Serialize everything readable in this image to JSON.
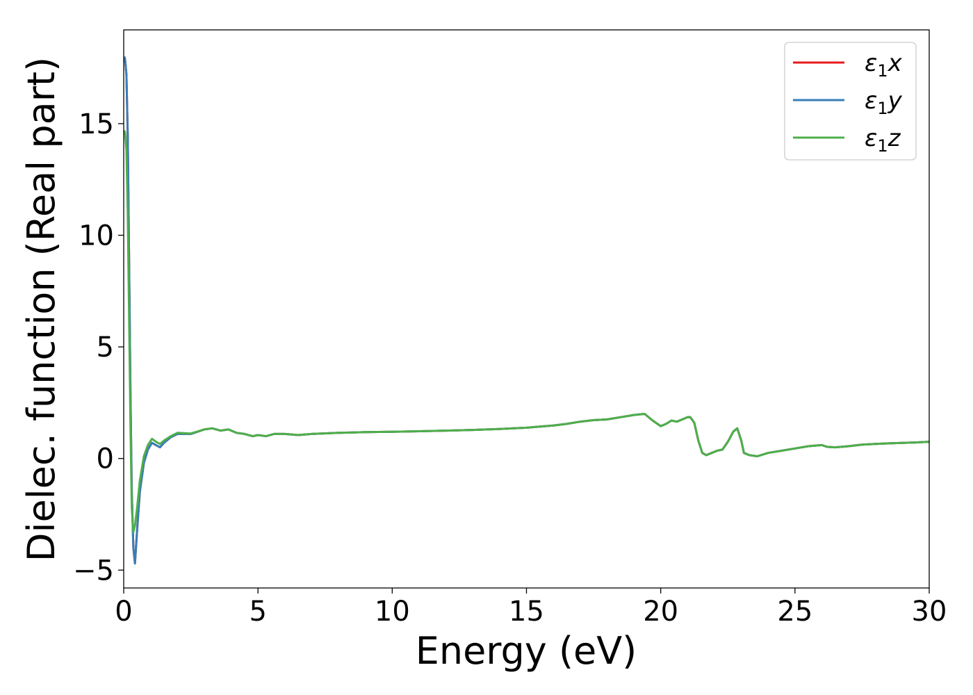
{
  "chart_data": {
    "type": "line",
    "title": "",
    "xlabel": "Energy (eV)",
    "ylabel": "Dielec. function (Real part)",
    "xlim": [
      0,
      30
    ],
    "ylim": [
      -5.8,
      19.2
    ],
    "xticks": [
      0,
      5,
      10,
      15,
      20,
      25,
      30
    ],
    "xtick_labels": [
      "0",
      "5",
      "10",
      "15",
      "20",
      "25",
      "30"
    ],
    "yticks": [
      -5,
      0,
      5,
      10,
      15
    ],
    "ytick_labels": [
      "−5",
      "0",
      "5",
      "10",
      "15"
    ],
    "grid": false,
    "legend_position": "top-right",
    "series": [
      {
        "name": "ε₁x",
        "legend_base": "ε",
        "legend_sub": "1",
        "legend_var": "x",
        "color": "#e41a1c",
        "points": [
          [
            0.02,
            18.0
          ],
          [
            0.05,
            17.9
          ],
          [
            0.1,
            17.2
          ],
          [
            0.15,
            14.5
          ],
          [
            0.2,
            9.0
          ],
          [
            0.25,
            3.0
          ],
          [
            0.3,
            -1.5
          ],
          [
            0.36,
            -4.0
          ],
          [
            0.42,
            -4.7
          ],
          [
            0.5,
            -3.2
          ],
          [
            0.6,
            -1.5
          ],
          [
            0.75,
            -0.2
          ],
          [
            0.9,
            0.4
          ],
          [
            1.05,
            0.7
          ],
          [
            1.2,
            0.6
          ],
          [
            1.35,
            0.5
          ],
          [
            1.5,
            0.7
          ],
          [
            1.75,
            0.95
          ],
          [
            2.0,
            1.1
          ],
          [
            2.5,
            1.1
          ],
          [
            3.0,
            1.3
          ],
          [
            3.3,
            1.35
          ],
          [
            3.6,
            1.25
          ],
          [
            3.9,
            1.3
          ],
          [
            4.2,
            1.15
          ],
          [
            4.5,
            1.1
          ],
          [
            4.8,
            1.0
          ],
          [
            5.0,
            1.05
          ],
          [
            5.3,
            1.0
          ],
          [
            5.6,
            1.1
          ],
          [
            6.0,
            1.1
          ],
          [
            6.5,
            1.05
          ],
          [
            7.0,
            1.1
          ],
          [
            8.0,
            1.15
          ],
          [
            9.0,
            1.18
          ],
          [
            10.0,
            1.2
          ],
          [
            11.0,
            1.22
          ],
          [
            12.0,
            1.25
          ],
          [
            13.0,
            1.28
          ],
          [
            14.0,
            1.32
          ],
          [
            15.0,
            1.38
          ],
          [
            16.0,
            1.48
          ],
          [
            16.5,
            1.55
          ],
          [
            17.0,
            1.65
          ],
          [
            17.5,
            1.72
          ],
          [
            18.0,
            1.75
          ],
          [
            18.5,
            1.85
          ],
          [
            19.0,
            1.95
          ],
          [
            19.4,
            2.0
          ],
          [
            19.7,
            1.7
          ],
          [
            20.0,
            1.45
          ],
          [
            20.2,
            1.55
          ],
          [
            20.4,
            1.7
          ],
          [
            20.6,
            1.65
          ],
          [
            20.8,
            1.75
          ],
          [
            21.0,
            1.85
          ],
          [
            21.1,
            1.85
          ],
          [
            21.25,
            1.6
          ],
          [
            21.4,
            0.8
          ],
          [
            21.55,
            0.25
          ],
          [
            21.7,
            0.15
          ],
          [
            21.9,
            0.25
          ],
          [
            22.1,
            0.35
          ],
          [
            22.3,
            0.4
          ],
          [
            22.5,
            0.75
          ],
          [
            22.7,
            1.2
          ],
          [
            22.85,
            1.35
          ],
          [
            23.0,
            0.8
          ],
          [
            23.1,
            0.25
          ],
          [
            23.3,
            0.15
          ],
          [
            23.6,
            0.1
          ],
          [
            24.0,
            0.25
          ],
          [
            24.5,
            0.35
          ],
          [
            25.0,
            0.45
          ],
          [
            25.5,
            0.55
          ],
          [
            26.0,
            0.6
          ],
          [
            26.2,
            0.52
          ],
          [
            26.5,
            0.5
          ],
          [
            27.0,
            0.55
          ],
          [
            27.5,
            0.62
          ],
          [
            28.0,
            0.65
          ],
          [
            28.5,
            0.68
          ],
          [
            29.0,
            0.7
          ],
          [
            29.5,
            0.72
          ],
          [
            30.0,
            0.75
          ]
        ]
      },
      {
        "name": "ε₁y",
        "legend_base": "ε",
        "legend_sub": "1",
        "legend_var": "y",
        "color": "#377eb8",
        "points": [
          [
            0.02,
            18.0
          ],
          [
            0.05,
            17.9
          ],
          [
            0.1,
            17.2
          ],
          [
            0.15,
            14.5
          ],
          [
            0.2,
            9.0
          ],
          [
            0.25,
            3.0
          ],
          [
            0.3,
            -1.5
          ],
          [
            0.36,
            -4.0
          ],
          [
            0.42,
            -4.7
          ],
          [
            0.5,
            -3.2
          ],
          [
            0.6,
            -1.5
          ],
          [
            0.75,
            -0.2
          ],
          [
            0.9,
            0.4
          ],
          [
            1.05,
            0.7
          ],
          [
            1.2,
            0.6
          ],
          [
            1.35,
            0.5
          ],
          [
            1.5,
            0.7
          ],
          [
            1.75,
            0.95
          ],
          [
            2.0,
            1.1
          ],
          [
            2.5,
            1.1
          ],
          [
            3.0,
            1.3
          ],
          [
            3.3,
            1.35
          ],
          [
            3.6,
            1.25
          ],
          [
            3.9,
            1.3
          ],
          [
            4.2,
            1.15
          ],
          [
            4.5,
            1.1
          ],
          [
            4.8,
            1.0
          ],
          [
            5.0,
            1.05
          ],
          [
            5.3,
            1.0
          ],
          [
            5.6,
            1.1
          ],
          [
            6.0,
            1.1
          ],
          [
            6.5,
            1.05
          ],
          [
            7.0,
            1.1
          ],
          [
            8.0,
            1.15
          ],
          [
            9.0,
            1.18
          ],
          [
            10.0,
            1.2
          ],
          [
            11.0,
            1.22
          ],
          [
            12.0,
            1.25
          ],
          [
            13.0,
            1.28
          ],
          [
            14.0,
            1.32
          ],
          [
            15.0,
            1.38
          ],
          [
            16.0,
            1.48
          ],
          [
            16.5,
            1.55
          ],
          [
            17.0,
            1.65
          ],
          [
            17.5,
            1.72
          ],
          [
            18.0,
            1.75
          ],
          [
            18.5,
            1.85
          ],
          [
            19.0,
            1.95
          ],
          [
            19.4,
            2.0
          ],
          [
            19.7,
            1.7
          ],
          [
            20.0,
            1.45
          ],
          [
            20.2,
            1.55
          ],
          [
            20.4,
            1.7
          ],
          [
            20.6,
            1.65
          ],
          [
            20.8,
            1.75
          ],
          [
            21.0,
            1.85
          ],
          [
            21.1,
            1.85
          ],
          [
            21.25,
            1.6
          ],
          [
            21.4,
            0.8
          ],
          [
            21.55,
            0.25
          ],
          [
            21.7,
            0.15
          ],
          [
            21.9,
            0.25
          ],
          [
            22.1,
            0.35
          ],
          [
            22.3,
            0.4
          ],
          [
            22.5,
            0.75
          ],
          [
            22.7,
            1.2
          ],
          [
            22.85,
            1.35
          ],
          [
            23.0,
            0.8
          ],
          [
            23.1,
            0.25
          ],
          [
            23.3,
            0.15
          ],
          [
            23.6,
            0.1
          ],
          [
            24.0,
            0.25
          ],
          [
            24.5,
            0.35
          ],
          [
            25.0,
            0.45
          ],
          [
            25.5,
            0.55
          ],
          [
            26.0,
            0.6
          ],
          [
            26.2,
            0.52
          ],
          [
            26.5,
            0.5
          ],
          [
            27.0,
            0.55
          ],
          [
            27.5,
            0.62
          ],
          [
            28.0,
            0.65
          ],
          [
            28.5,
            0.68
          ],
          [
            29.0,
            0.7
          ],
          [
            29.5,
            0.72
          ],
          [
            30.0,
            0.75
          ]
        ]
      },
      {
        "name": "ε₁z",
        "legend_base": "ε",
        "legend_sub": "1",
        "legend_var": "z",
        "color": "#4daf4a",
        "points": [
          [
            0.02,
            14.7
          ],
          [
            0.05,
            14.6
          ],
          [
            0.1,
            13.8
          ],
          [
            0.15,
            11.0
          ],
          [
            0.2,
            6.5
          ],
          [
            0.25,
            1.5
          ],
          [
            0.3,
            -2.2
          ],
          [
            0.36,
            -3.3
          ],
          [
            0.42,
            -3.0
          ],
          [
            0.5,
            -2.2
          ],
          [
            0.6,
            -1.0
          ],
          [
            0.75,
            0.1
          ],
          [
            0.9,
            0.6
          ],
          [
            1.05,
            0.88
          ],
          [
            1.2,
            0.75
          ],
          [
            1.35,
            0.65
          ],
          [
            1.5,
            0.8
          ],
          [
            1.75,
            1.0
          ],
          [
            2.0,
            1.15
          ],
          [
            2.5,
            1.12
          ],
          [
            3.0,
            1.3
          ],
          [
            3.3,
            1.35
          ],
          [
            3.6,
            1.25
          ],
          [
            3.9,
            1.3
          ],
          [
            4.2,
            1.15
          ],
          [
            4.5,
            1.1
          ],
          [
            4.8,
            1.0
          ],
          [
            5.0,
            1.05
          ],
          [
            5.3,
            1.0
          ],
          [
            5.6,
            1.1
          ],
          [
            6.0,
            1.1
          ],
          [
            6.5,
            1.05
          ],
          [
            7.0,
            1.1
          ],
          [
            8.0,
            1.15
          ],
          [
            9.0,
            1.18
          ],
          [
            10.0,
            1.2
          ],
          [
            11.0,
            1.22
          ],
          [
            12.0,
            1.25
          ],
          [
            13.0,
            1.28
          ],
          [
            14.0,
            1.32
          ],
          [
            15.0,
            1.38
          ],
          [
            16.0,
            1.48
          ],
          [
            16.5,
            1.55
          ],
          [
            17.0,
            1.65
          ],
          [
            17.5,
            1.72
          ],
          [
            18.0,
            1.75
          ],
          [
            18.5,
            1.85
          ],
          [
            19.0,
            1.95
          ],
          [
            19.4,
            2.0
          ],
          [
            19.7,
            1.7
          ],
          [
            20.0,
            1.45
          ],
          [
            20.2,
            1.55
          ],
          [
            20.4,
            1.7
          ],
          [
            20.6,
            1.65
          ],
          [
            20.8,
            1.75
          ],
          [
            21.0,
            1.85
          ],
          [
            21.1,
            1.85
          ],
          [
            21.25,
            1.6
          ],
          [
            21.4,
            0.8
          ],
          [
            21.55,
            0.25
          ],
          [
            21.7,
            0.15
          ],
          [
            21.9,
            0.25
          ],
          [
            22.1,
            0.35
          ],
          [
            22.3,
            0.4
          ],
          [
            22.5,
            0.75
          ],
          [
            22.7,
            1.2
          ],
          [
            22.85,
            1.35
          ],
          [
            23.0,
            0.8
          ],
          [
            23.1,
            0.25
          ],
          [
            23.3,
            0.15
          ],
          [
            23.6,
            0.1
          ],
          [
            24.0,
            0.25
          ],
          [
            24.5,
            0.35
          ],
          [
            25.0,
            0.45
          ],
          [
            25.5,
            0.55
          ],
          [
            26.0,
            0.6
          ],
          [
            26.2,
            0.52
          ],
          [
            26.5,
            0.5
          ],
          [
            27.0,
            0.55
          ],
          [
            27.5,
            0.62
          ],
          [
            28.0,
            0.65
          ],
          [
            28.5,
            0.68
          ],
          [
            29.0,
            0.7
          ],
          [
            29.5,
            0.72
          ],
          [
            30.0,
            0.75
          ]
        ]
      }
    ]
  }
}
